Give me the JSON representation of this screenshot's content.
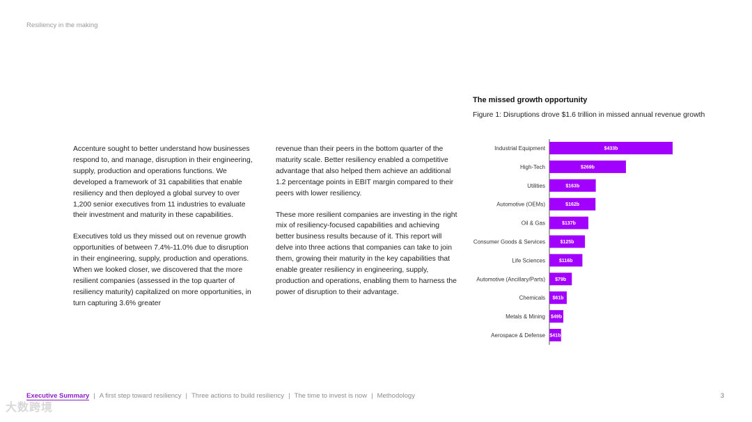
{
  "header": {
    "running_title": "Resiliency in the making"
  },
  "body": {
    "column_1": [
      "Accenture sought to better understand how businesses respond to, and manage, disruption in their engineering, supply, production and operations functions. We developed a framework of 31 capabilities that enable resiliency and then deployed a global survey to over 1,200 senior executives from 11 industries to evaluate their investment and maturity in these capabilities.",
      "Executives told us they missed out on revenue growth opportunities of between 7.4%-11.0% due to disruption in their engineering, supply, production and operations. When we looked closer, we discovered that the more resilient companies (assessed in the top quarter of resiliency maturity) capitalized on more opportunities, in turn capturing 3.6% greater"
    ],
    "column_2": [
      "revenue than their peers in the bottom quarter of the maturity scale. Better resiliency enabled a competitive advantage that also helped them achieve an additional 1.2 percentage points in EBIT margin compared to their peers with lower resiliency.",
      "These more resilient companies are investing in the right mix of resiliency-focused capabilities and achieving better business results because of it. This report will delve into three actions that companies can take to join them, growing their maturity in the key capabilities that enable greater resiliency in engineering, supply, production and operations, enabling them to harness the power of disruption to their advantage."
    ]
  },
  "chart_data": {
    "type": "bar",
    "orientation": "horizontal",
    "title": "The missed growth opportunity",
    "subtitle": "Figure 1: Disruptions drove $1.6 trillion in missed annual revenue growth",
    "unit": "billion USD",
    "bar_color": "#a100ff",
    "categories": [
      "Industrial Equipment",
      "High-Tech",
      "Utilities",
      "Automotive (OEMs)",
      "Oil & Gas",
      "Consumer Goods & Services",
      "Life Sciences",
      "Automotive (Ancillary/Parts)",
      "Chemicals",
      "Metals & Mining",
      "Aerospace & Defense"
    ],
    "values": [
      433,
      269,
      163,
      162,
      137,
      125,
      116,
      79,
      61,
      49,
      41
    ],
    "labels": [
      "$433b",
      "$269b",
      "$163b",
      "$162b",
      "$137b",
      "$125b",
      "$116b",
      "$79b",
      "$61b",
      "$49b",
      "$41b"
    ],
    "xlim": [
      0,
      433
    ]
  },
  "footer": {
    "nav": [
      {
        "label": "Executive Summary",
        "active": true
      },
      {
        "label": "A first step toward resiliency",
        "active": false
      },
      {
        "label": "Three actions to build resiliency",
        "active": false
      },
      {
        "label": "The time to invest is now",
        "active": false
      },
      {
        "label": "Methodology",
        "active": false
      }
    ],
    "page_number": "3"
  },
  "watermark": "大数跨境"
}
